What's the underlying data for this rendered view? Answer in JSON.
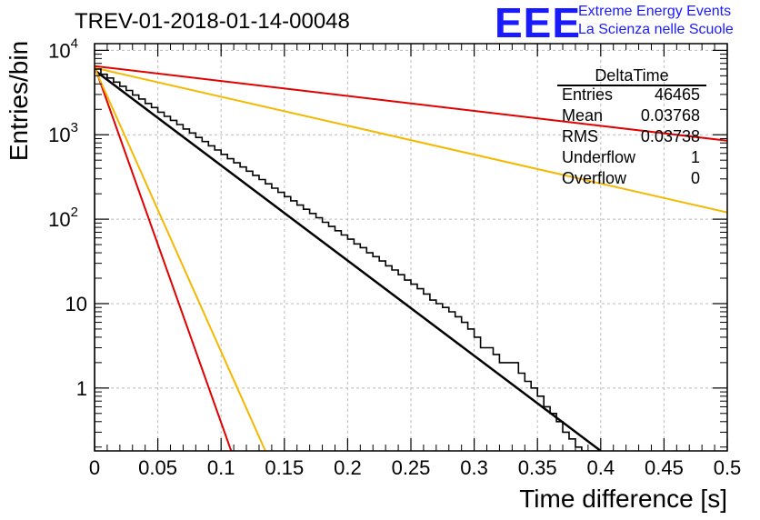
{
  "chart_data": {
    "type": "line",
    "title": "TREV-01-2018-01-14-00048",
    "xlabel": "Time difference [s]",
    "ylabel": "Entries/bin",
    "xlim": [
      0,
      0.5
    ],
    "ylim": [
      0.18,
      12000
    ],
    "yscale": "log",
    "grid": true,
    "x_ticks": [
      "0",
      "0.05",
      "0.1",
      "0.15",
      "0.2",
      "0.25",
      "0.3",
      "0.35",
      "0.4",
      "0.45",
      "0.5"
    ],
    "y_ticks": [
      {
        "value": 1,
        "label": "1"
      },
      {
        "value": 10,
        "label": "10"
      },
      {
        "value": 100,
        "base": "10",
        "exp": "2"
      },
      {
        "value": 1000,
        "base": "10",
        "exp": "3"
      },
      {
        "value": 10000,
        "base": "10",
        "exp": "4"
      }
    ],
    "histogram": {
      "bin_width": 0.005,
      "values": [
        6000,
        5200,
        4700,
        4200,
        3750,
        3350,
        2950,
        2650,
        2350,
        2100,
        1850,
        1650,
        1480,
        1320,
        1170,
        1050,
        930,
        830,
        740,
        660,
        585,
        520,
        465,
        415,
        370,
        330,
        295,
        262,
        233,
        208,
        185,
        165,
        147,
        131,
        117,
        104,
        92,
        82,
        73,
        65,
        58,
        51,
        46,
        40,
        36,
        32,
        28,
        25,
        22,
        19,
        17,
        15,
        13,
        11,
        10,
        9,
        8,
        7,
        6,
        5,
        4,
        3,
        3,
        2.5,
        2,
        2,
        2,
        1.5,
        1.2,
        1,
        0.8,
        0.6,
        0.5,
        0.4,
        0.3,
        0.25,
        0.2,
        0.15,
        0.1,
        0.09
      ]
    },
    "series": [
      {
        "color": "#000000",
        "x": [
          0,
          0.4
        ],
        "y": [
          5800,
          0.18
        ]
      },
      {
        "color": "#e00000",
        "x": [
          0,
          0.5
        ],
        "y": [
          6500,
          850
        ]
      },
      {
        "color": "#e00000",
        "x": [
          0,
          0.108
        ],
        "y": [
          6500,
          0.18
        ]
      },
      {
        "color": "#f5b800",
        "x": [
          0,
          0.5
        ],
        "y": [
          6200,
          120
        ]
      },
      {
        "color": "#f5b800",
        "x": [
          0,
          0.135
        ],
        "y": [
          6200,
          0.18
        ]
      }
    ],
    "stats": {
      "title": "DeltaTime",
      "rows": [
        {
          "key": "Entries",
          "value": "46465"
        },
        {
          "key": "Mean",
          "value": "0.03768"
        },
        {
          "key": "RMS",
          "value": "0.03738"
        },
        {
          "key": "Underflow",
          "value": "1"
        },
        {
          "key": "Overflow",
          "value": "0"
        }
      ]
    }
  },
  "logo": {
    "mark": "EEE",
    "line1": "Extreme Energy Events",
    "line2": "La Scienza nelle Scuole"
  }
}
